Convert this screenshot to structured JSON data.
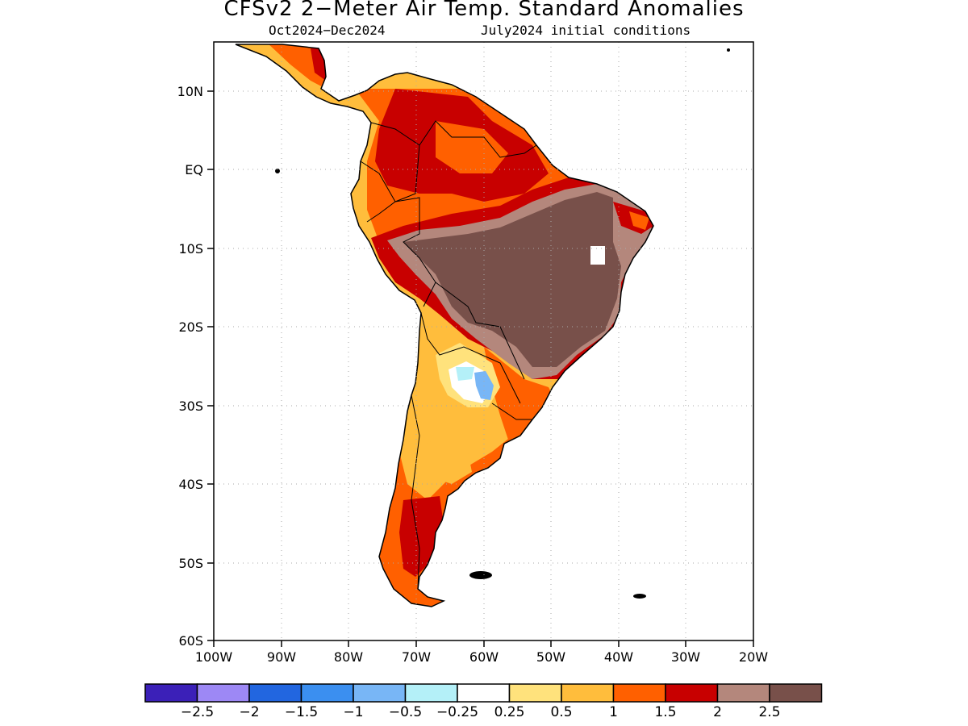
{
  "title": "CFSv2 2−Meter Air Temp. Standard Anomalies",
  "subtitle_period": "Oct2024−Dec2024",
  "subtitle_init": "July2024 initial conditions",
  "lat_labels": [
    "10N",
    "EQ",
    "10S",
    "20S",
    "30S",
    "40S",
    "50S",
    "60S"
  ],
  "lon_labels": [
    "100W",
    "90W",
    "80W",
    "70W",
    "60W",
    "50W",
    "40W",
    "30W",
    "20W"
  ],
  "colorbar": {
    "colors": [
      "#3b20b8",
      "#9d88f5",
      "#2266e0",
      "#3b8ff0",
      "#78b6f6",
      "#b4f0f8",
      "#ffffff",
      "#ffe27c",
      "#ffbd3c",
      "#ff6000",
      "#c80000",
      "#b4877c",
      "#78504a"
    ],
    "labels": [
      "−2.5",
      "−2",
      "−1.5",
      "−1",
      "−0.5",
      "−0.25",
      "0.25",
      "0.5",
      "1",
      "1.5",
      "2",
      "2.5"
    ]
  },
  "anomaly_colors": {
    "weak": "#ffe27c",
    "moderate": "#ffbd3c",
    "strong": "#ff6000",
    "very_strong": "#c80000",
    "extreme": "#b4877c",
    "record": "#78504a",
    "cool_light": "#b4f0f8",
    "cool": "#78b6f6"
  }
}
